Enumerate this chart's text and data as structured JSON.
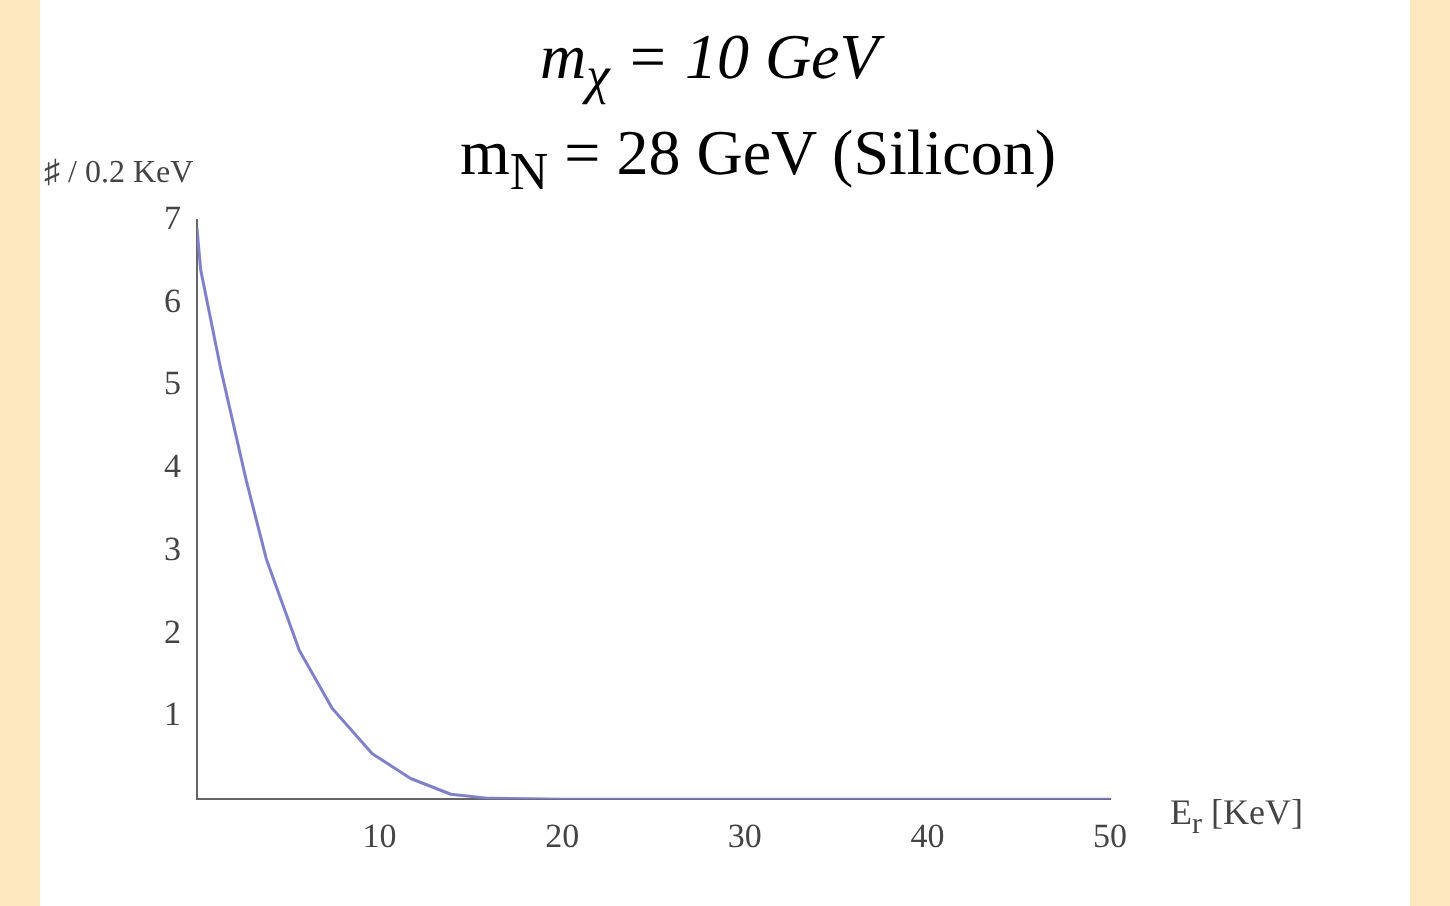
{
  "chart_data": {
    "type": "line",
    "title": "m$_{χ}$ = 10 GeV",
    "subtitle": "m$_{N}$ = 28 GeV (Silicon)",
    "xlabel": "E$_{r}$ [KeV]",
    "ylabel": "♯ / 0.2 KeV",
    "x": [
      0,
      0.2,
      1.3,
      2.7,
      3.8,
      5.6,
      7.4,
      9.6,
      11.7,
      13.9,
      16,
      20,
      30,
      40,
      50
    ],
    "values": [
      6.9,
      6.4,
      5.2,
      3.85,
      2.9,
      1.8,
      1.1,
      0.55,
      0.25,
      0.06,
      0.01,
      0,
      0,
      0,
      0
    ],
    "color": "#8080c8",
    "xlim": [
      0,
      50
    ],
    "ylim": [
      0,
      7
    ],
    "xticks": [
      10,
      20,
      30,
      40,
      50
    ],
    "yticks": [
      1,
      2,
      3,
      4,
      5,
      6,
      7
    ],
    "grid": false,
    "legend": false,
    "marker": "none",
    "line_style": "solid"
  }
}
